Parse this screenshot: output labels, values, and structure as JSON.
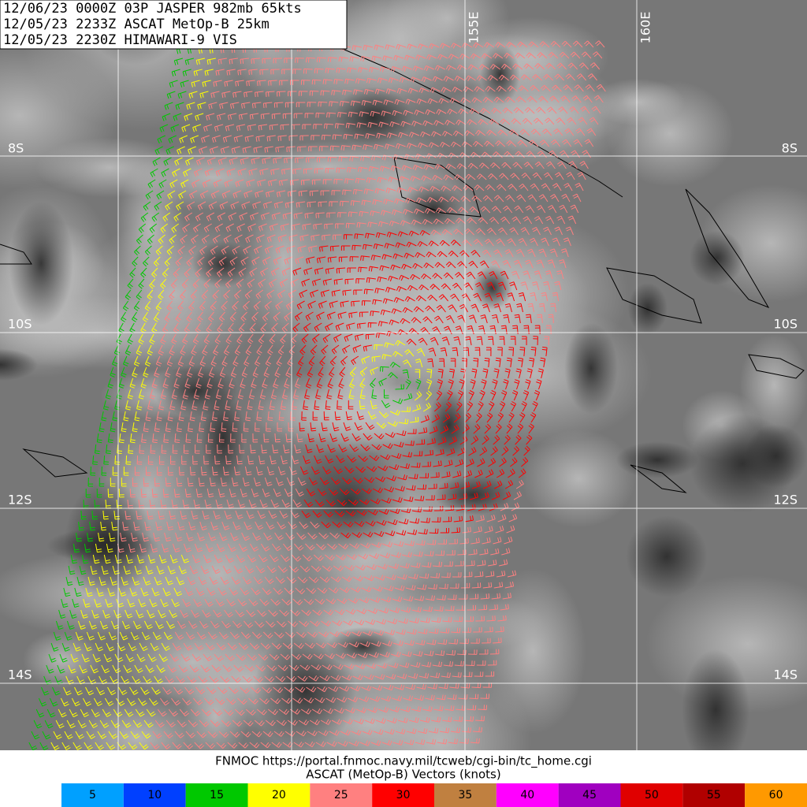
{
  "header": {
    "lines": [
      "12/06/23 0000Z  03P JASPER 982mb 65kts",
      "12/05/23 2233Z  ASCAT MetOp-B 25km",
      "12/05/23 2230Z  HIMAWARI-9 VIS"
    ]
  },
  "grid": {
    "latitude_labels": [
      "8S",
      "10S",
      "12S",
      "14S"
    ],
    "longitude_labels": [
      "155E",
      "160E"
    ]
  },
  "footer": {
    "source": "FNMOC https://portal.fnmoc.navy.mil/tcweb/cgi-bin/tc_home.cgi",
    "title": "ASCAT (MetOp-B) Vectors (knots)"
  },
  "legend": {
    "items": [
      {
        "value": 5,
        "color": "#00a0ff"
      },
      {
        "value": 10,
        "color": "#0040ff"
      },
      {
        "value": 15,
        "color": "#00c800"
      },
      {
        "value": 20,
        "color": "#ffff00"
      },
      {
        "value": 25,
        "color": "#ff8080"
      },
      {
        "value": 30,
        "color": "#ff0000"
      },
      {
        "value": 35,
        "color": "#c08040"
      },
      {
        "value": 40,
        "color": "#ff00ff"
      },
      {
        "value": 45,
        "color": "#a000c0"
      },
      {
        "value": 50,
        "color": "#e00000"
      },
      {
        "value": 55,
        "color": "#b00000"
      },
      {
        "value": 60,
        "color": "#ff9900"
      }
    ]
  }
}
